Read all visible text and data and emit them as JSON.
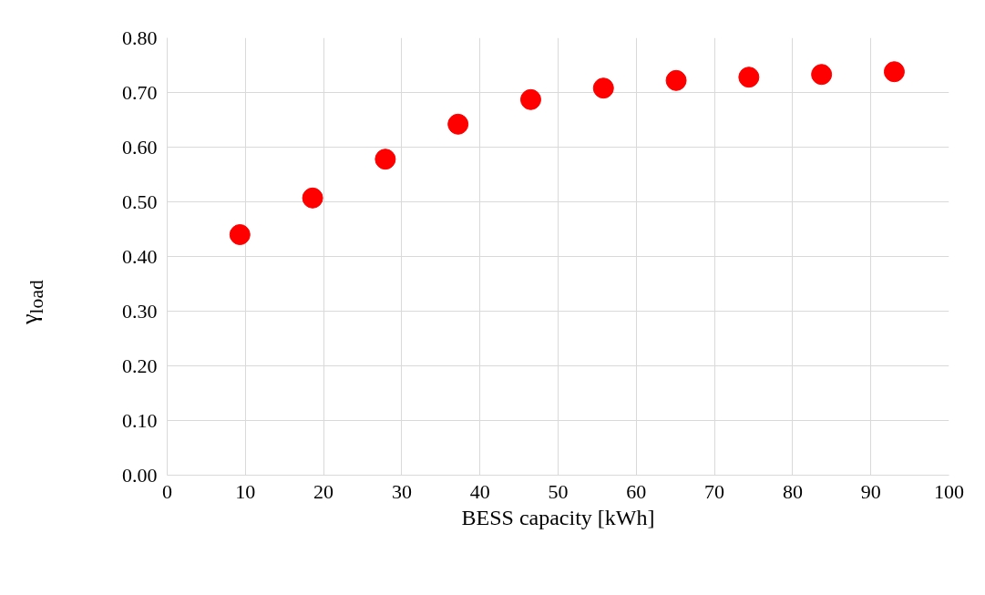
{
  "chart_data": {
    "type": "scatter",
    "xlabel": "BESS capacity [kWh]",
    "ylabel": "γ$_{load}$",
    "x": [
      9.3,
      18.6,
      27.9,
      37.2,
      46.5,
      55.8,
      65.1,
      74.4,
      83.7,
      93.0
    ],
    "series": [
      {
        "color": "#ff0000",
        "values": [
          0.44,
          0.507,
          0.578,
          0.642,
          0.687,
          0.708,
          0.722,
          0.728,
          0.733,
          0.738
        ]
      }
    ],
    "xlim": [
      0,
      100
    ],
    "xticks": [
      0,
      10,
      20,
      30,
      40,
      50,
      60,
      70,
      80,
      90,
      100
    ],
    "ylim": [
      0,
      0.8
    ],
    "yticks": [
      {
        "value": 0,
        "label": "0.00"
      },
      {
        "value": 0.1,
        "label": "0.10"
      },
      {
        "value": 0.2,
        "label": "0.20"
      },
      {
        "value": 0.3,
        "label": "0.30"
      },
      {
        "value": 0.4,
        "label": "0.40"
      },
      {
        "value": 0.5,
        "label": "0.50"
      },
      {
        "value": 0.6,
        "label": "0.60"
      },
      {
        "value": 0.7,
        "label": "0.70"
      },
      {
        "value": 0.8,
        "label": "0.80"
      }
    ],
    "grid": true,
    "marker": "circle"
  }
}
